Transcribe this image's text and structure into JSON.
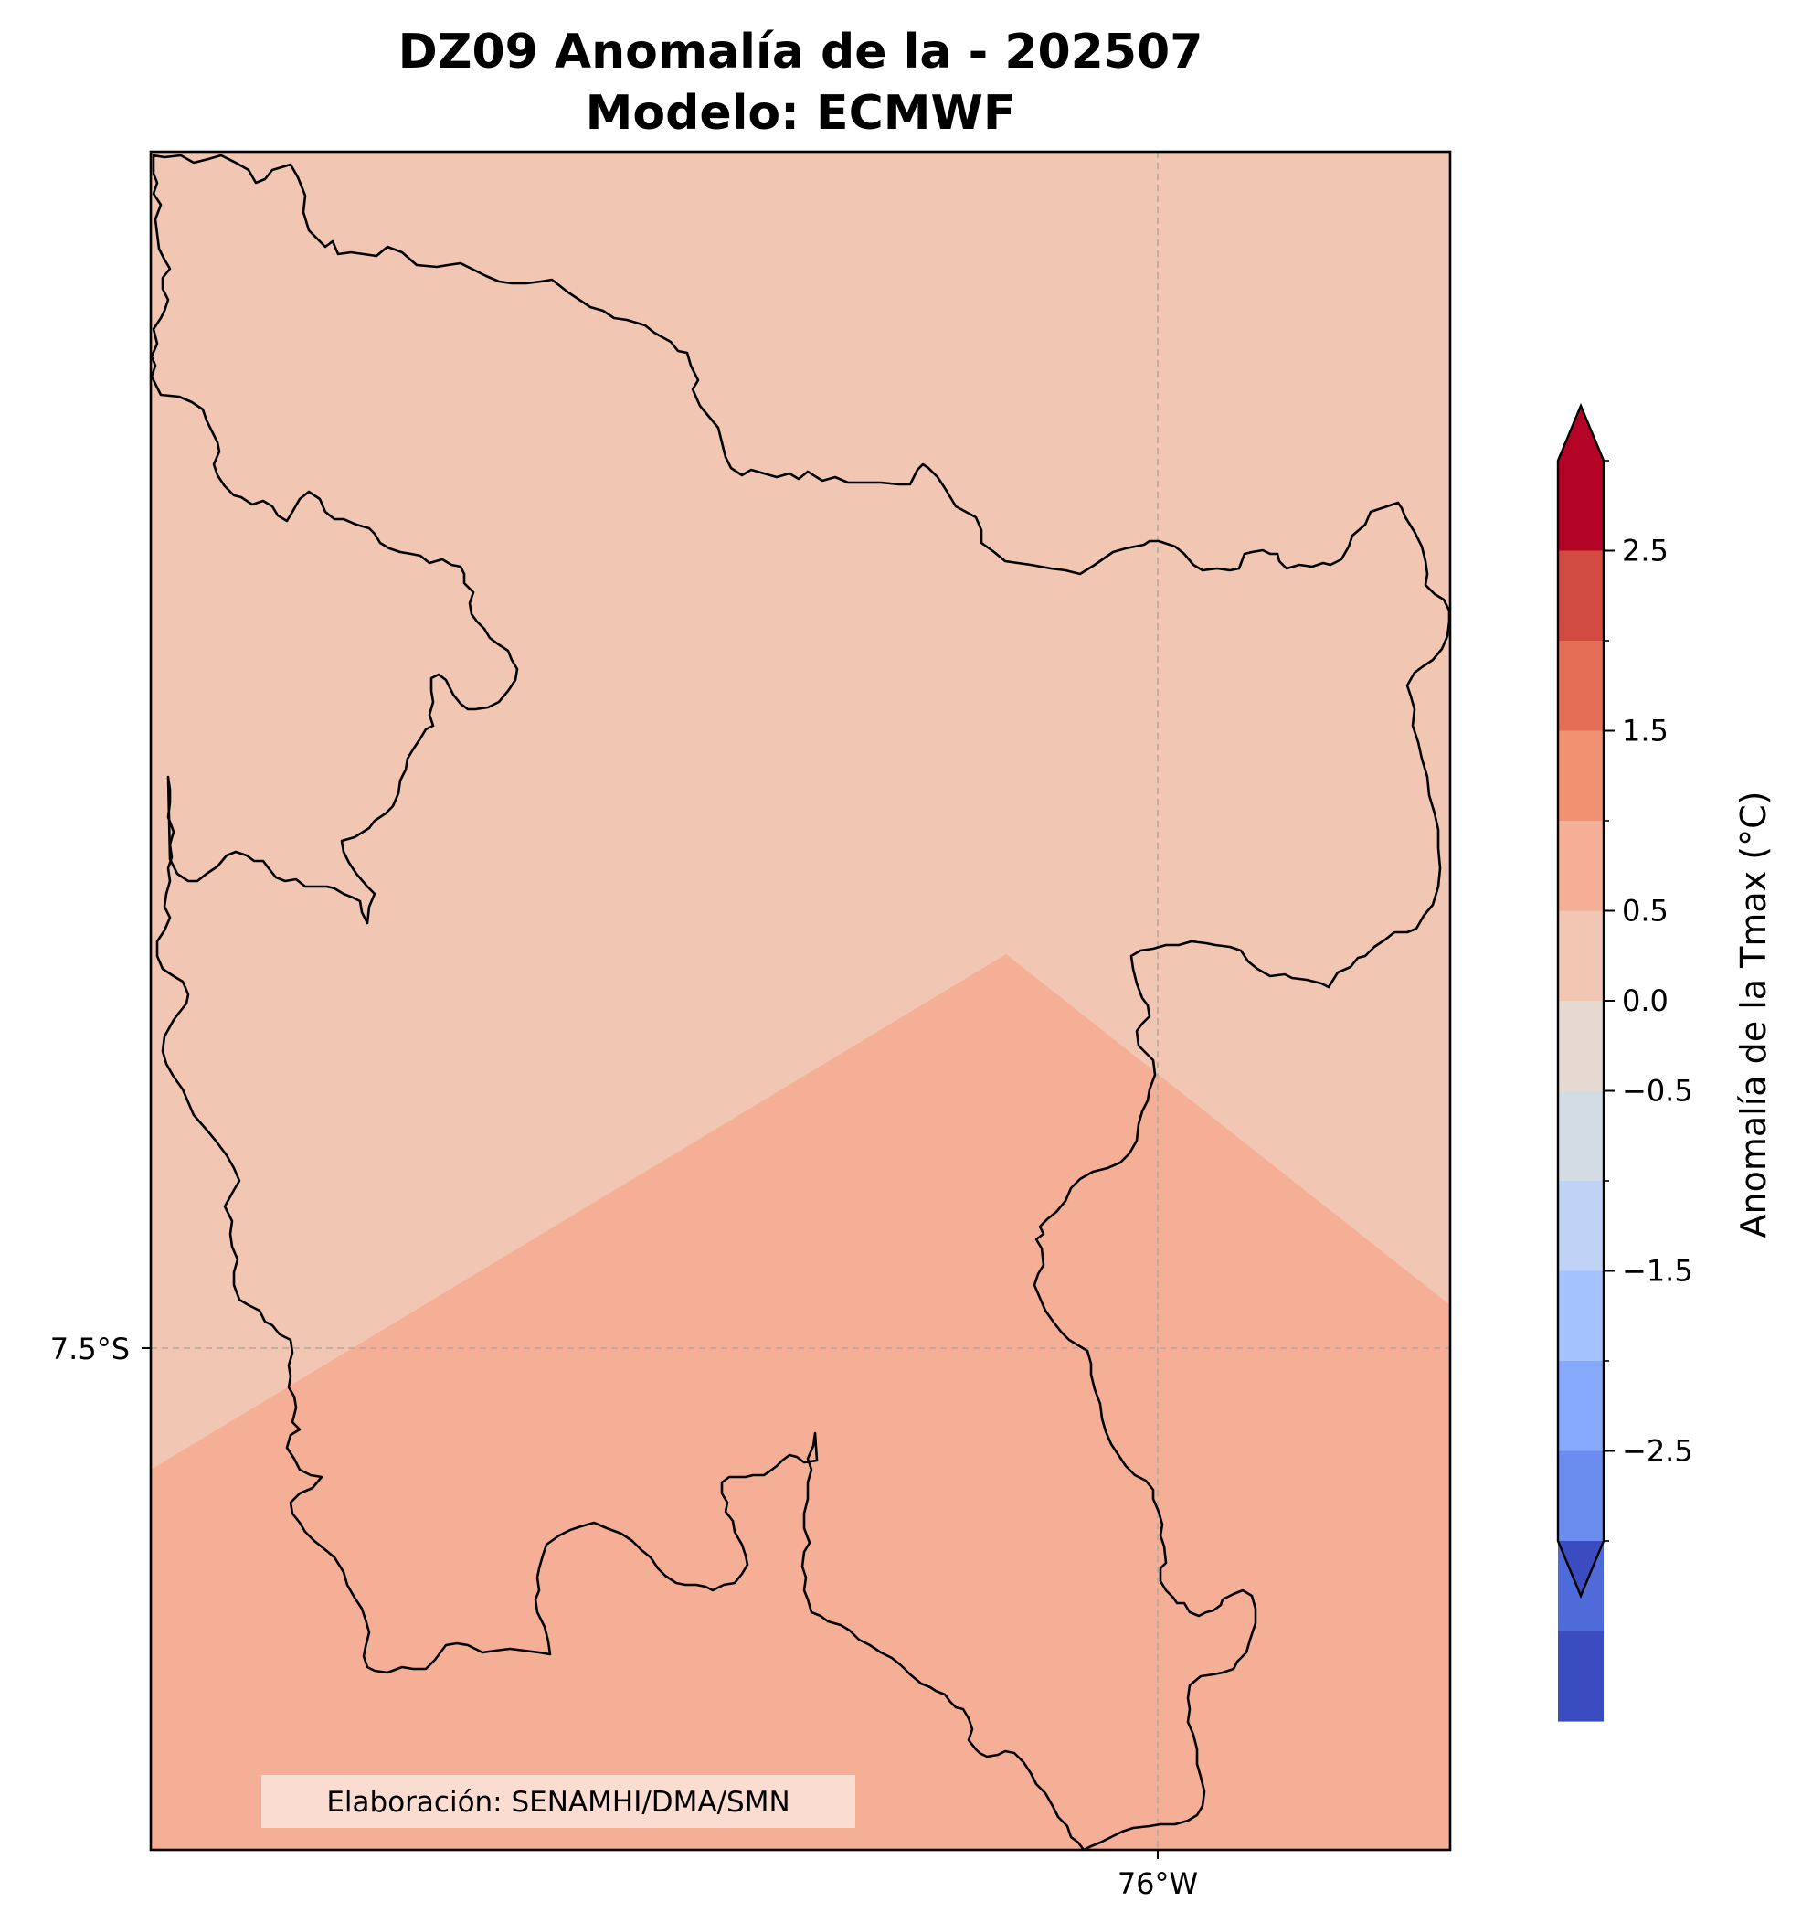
{
  "title": {
    "line1": "DZ09 Anomalía de la - 202507",
    "line2": "Modelo: ECMWF"
  },
  "map": {
    "lat_label": "7.5°S",
    "lon_label": "76°W",
    "credit": "Elaboración: SENAMHI/DMA/SMN",
    "regions": [
      {
        "name": "north",
        "anomaly_class": "0.25 to 0.75",
        "color": "#f1c6b2"
      },
      {
        "name": "south",
        "anomaly_class": "0.75 to 1.25",
        "color": "#f5af96"
      }
    ],
    "gridline_color": "#b0a8a0",
    "boundary_color": "#000000"
  },
  "colorbar": {
    "label": "Anomalía de la Tmax (°C)",
    "levels": [
      -3.0,
      -2.5,
      -2.0,
      -1.5,
      -1.0,
      -0.5,
      0.0,
      0.5,
      1.0,
      1.5,
      2.0,
      2.5,
      3.0
    ],
    "tick_values": [
      2.5,
      1.5,
      0.5,
      0.0,
      -0.5,
      -1.5,
      -2.5
    ],
    "tick_labels": [
      "2.5",
      "1.5",
      "0.5",
      "0.0",
      "−0.5",
      "−1.5",
      "−2.5"
    ],
    "colors_top_to_bottom": [
      "#b40426",
      "#d24b40",
      "#e46e56",
      "#f29072",
      "#f5af96",
      "#f1c6b2",
      "#e6d9d2",
      "#d3dbe5",
      "#bfd3f6",
      "#a3c2fe",
      "#86a9fc",
      "#6b8df0",
      "#4f6ad9",
      "#3b4cc0"
    ],
    "extend_max_color": "#b40426",
    "extend_min_color": "#3b4cc0"
  }
}
